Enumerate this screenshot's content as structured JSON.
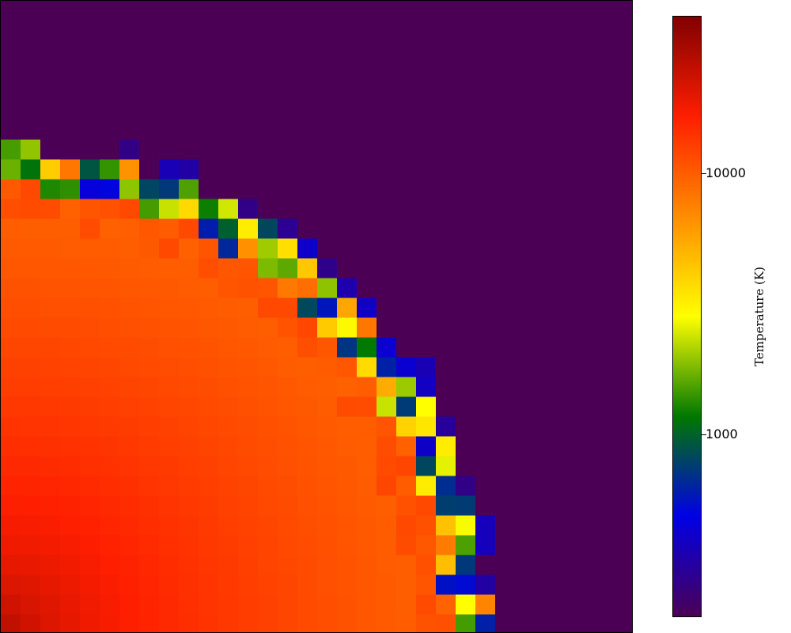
{
  "chart_data": {
    "type": "heatmap",
    "title": "",
    "xlabel": "",
    "ylabel": "",
    "grid_cells": [
      32,
      32
    ],
    "value_description": "temperature field, hot core in lower-left corner, cool ambient elsewhere",
    "ambient_temperature": 200,
    "core_temperature": 30000,
    "front_temperature": 9000,
    "colorbar": {
      "label": "Temperature  (K)",
      "scale": "log",
      "range": [
        200,
        40000
      ],
      "ticks": [
        {
          "value": 1000,
          "label": "1000"
        },
        {
          "value": 10000,
          "label": "10000"
        }
      ],
      "colormap": [
        "#4b0055",
        "#0000e6",
        "#007800",
        "#ffff00",
        "#ff8c00",
        "#ff1e00",
        "#800000"
      ]
    }
  }
}
